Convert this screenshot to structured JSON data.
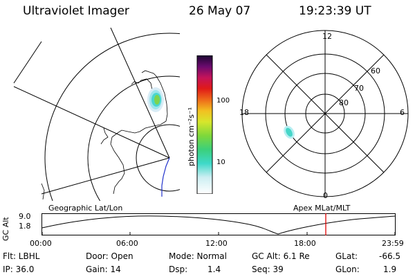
{
  "header": {
    "title": "Ultraviolet Imager",
    "date": "26 May 07",
    "time": "19:23:39 UT"
  },
  "colorbar": {
    "unit_label": "photon cm⁻²s⁻¹",
    "ticks": [
      "100",
      "10"
    ]
  },
  "polar_plot": {
    "mlt_labels": {
      "top": "12",
      "left": "18",
      "right": "6",
      "bottom": "0"
    },
    "lat_labels": [
      "60",
      "70",
      "80"
    ]
  },
  "labels": {
    "geographic": "Geographic Lat/Lon",
    "apex": "Apex MLat/MLT"
  },
  "altitude_plot": {
    "axis_label": "GC Alt",
    "y_max": "9.0",
    "y_min": "1.8",
    "x_ticks": [
      "00:00",
      "06:00",
      "12:00",
      "18:00",
      "23:59"
    ],
    "marker_color": "#e00000"
  },
  "info": {
    "flt": "Flt: LBHL",
    "ip": "IP: 36.0",
    "door": "Door: Open",
    "gain": "Gain: 14",
    "mode": "Mode: Normal",
    "dsp_label": "Dsp:",
    "dsp_value": "1.4",
    "gc_alt": "GC Alt: 6.1 Re",
    "seq": "Seq: 39",
    "glat_label": "GLat:",
    "glat_value": "-66.5",
    "glon_label": "GLon:",
    "glon_value": "1.9"
  }
}
